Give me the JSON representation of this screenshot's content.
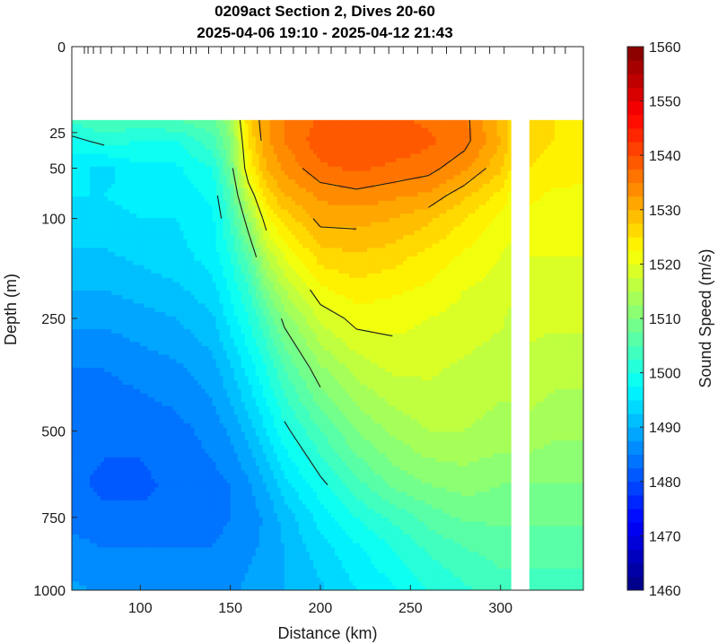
{
  "chart_data": {
    "type": "heatmap",
    "title_line1": "0209act Section 2, Dives 20-60",
    "title_line2": "2025-04-06 19:10 - 2025-04-12 21:43",
    "xlabel": "Distance (km)",
    "ylabel": "Depth (m)",
    "colorbar_label": "Sound Speed (m/s)",
    "xlim": [
      62,
      346
    ],
    "ylim": [
      0,
      1000
    ],
    "y_scale": "sqrt",
    "x_ticks": [
      100,
      150,
      200,
      250,
      300
    ],
    "y_ticks": [
      0,
      25,
      50,
      100,
      250,
      500,
      750,
      1000
    ],
    "clim": [
      1460,
      1560
    ],
    "colorbar_ticks": [
      1460,
      1470,
      1480,
      1490,
      1500,
      1510,
      1520,
      1530,
      1540,
      1550,
      1560
    ],
    "colormap": "jet",
    "no_data_top_depth": 18,
    "no_data_gap_km": [
      306,
      316
    ],
    "dive_tick_distances_km": [
      69,
      71,
      74,
      78,
      84,
      91,
      98,
      104,
      111,
      117,
      124,
      128,
      131,
      138,
      145,
      152,
      158,
      165,
      172,
      178,
      185,
      192,
      199,
      206,
      214,
      222,
      230,
      238,
      246,
      254,
      262,
      270,
      278,
      286,
      294,
      302,
      318,
      324,
      330,
      336
    ],
    "distance_km": [
      62,
      80,
      100,
      120,
      140,
      150,
      160,
      170,
      180,
      200,
      220,
      240,
      260,
      280,
      300,
      306,
      316,
      330,
      346
    ],
    "depth_m": [
      18,
      30,
      50,
      75,
      100,
      150,
      200,
      250,
      350,
      500,
      650,
      750,
      850,
      1000
    ],
    "sound_speed_ms": [
      [
        1503,
        1505,
        1504,
        1505,
        1507,
        1512,
        1527,
        1532,
        1535,
        1538,
        1539,
        1538,
        1537,
        1536,
        1529,
        1527,
        1526,
        1525,
        1524
      ],
      [
        1499,
        1501,
        1500,
        1500,
        1504,
        1510,
        1525,
        1532,
        1535,
        1539,
        1540,
        1539,
        1538,
        1536,
        1530,
        1527,
        1526,
        1525,
        1524
      ],
      [
        1496,
        1494,
        1497,
        1497,
        1500,
        1508,
        1523,
        1530,
        1533,
        1537,
        1538,
        1537,
        1536,
        1533,
        1528,
        1525,
        1525,
        1524,
        1523
      ],
      [
        1495,
        1495,
        1496,
        1496,
        1498,
        1505,
        1517,
        1526,
        1530,
        1533,
        1534,
        1533,
        1532,
        1528,
        1524,
        1522,
        1523,
        1522,
        1522
      ],
      [
        1494,
        1494,
        1495,
        1495,
        1497,
        1503,
        1512,
        1522,
        1526,
        1531,
        1531,
        1530,
        1528,
        1525,
        1522,
        1521,
        1522,
        1521,
        1521
      ],
      [
        1492,
        1492,
        1493,
        1494,
        1496,
        1500,
        1506,
        1515,
        1520,
        1526,
        1527,
        1526,
        1524,
        1522,
        1520,
        1519,
        1520,
        1520,
        1520
      ],
      [
        1490,
        1490,
        1491,
        1492,
        1494,
        1498,
        1502,
        1510,
        1515,
        1522,
        1524,
        1523,
        1522,
        1520,
        1519,
        1518,
        1519,
        1519,
        1519
      ],
      [
        1488,
        1488,
        1489,
        1490,
        1492,
        1496,
        1500,
        1505,
        1511,
        1518,
        1521,
        1521,
        1520,
        1519,
        1518,
        1517,
        1518,
        1518,
        1518
      ],
      [
        1485,
        1485,
        1486,
        1487,
        1489,
        1492,
        1496,
        1500,
        1505,
        1512,
        1516,
        1518,
        1518,
        1517,
        1516,
        1516,
        1517,
        1516,
        1516
      ],
      [
        1483,
        1483,
        1483,
        1484,
        1486,
        1488,
        1491,
        1495,
        1499,
        1505,
        1510,
        1513,
        1515,
        1515,
        1514,
        1514,
        1514,
        1513,
        1513
      ],
      [
        1483,
        1482,
        1482,
        1483,
        1484,
        1485,
        1487,
        1490,
        1494,
        1499,
        1504,
        1508,
        1510,
        1511,
        1510,
        1510,
        1510,
        1510,
        1510
      ],
      [
        1484,
        1483,
        1483,
        1483,
        1484,
        1485,
        1486,
        1488,
        1491,
        1496,
        1500,
        1503,
        1506,
        1508,
        1508,
        1508,
        1508,
        1508,
        1508
      ],
      [
        1486,
        1485,
        1485,
        1485,
        1485,
        1486,
        1487,
        1488,
        1490,
        1494,
        1497,
        1500,
        1503,
        1505,
        1506,
        1506,
        1506,
        1506,
        1506
      ],
      [
        1488,
        1487,
        1487,
        1487,
        1487,
        1487,
        1488,
        1489,
        1490,
        1492,
        1495,
        1497,
        1500,
        1502,
        1504,
        1504,
        1504,
        1504,
        1504
      ]
    ]
  }
}
